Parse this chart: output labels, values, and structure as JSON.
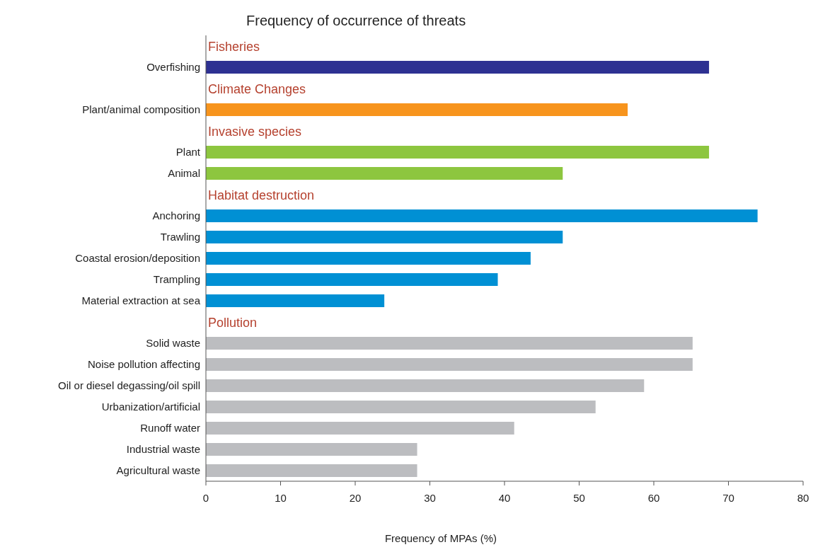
{
  "chart_data": {
    "type": "bar",
    "orientation": "horizontal",
    "title": "Frequency of occurrence of threats",
    "xlabel": "Frequency of MPAs (%)",
    "categories": [
      null,
      "Overfishing",
      null,
      "Plant/animal composition",
      null,
      "Plant",
      "Animal",
      null,
      "Anchoring",
      "Trawling",
      "Coastal erosion/deposition",
      "Trampling",
      "Material extraction at sea",
      null,
      "Solid waste",
      "Noise pollution affecting",
      "Oil or diesel degassing/oil spill",
      "Urbanization/artificial",
      "Runoff water",
      "Industrial waste",
      "Agricultural waste"
    ],
    "values": [
      null,
      67.4,
      null,
      56.5,
      null,
      67.4,
      47.8,
      null,
      73.9,
      47.8,
      43.5,
      39.1,
      23.9,
      null,
      65.2,
      65.2,
      58.7,
      52.2,
      41.3,
      28.3,
      28.3
    ],
    "colors": [
      "#ffffff",
      "#2e3192",
      "#ffffff",
      "#f7941d",
      "#ffffff",
      "#8dc63f",
      "#8dc63f",
      "#ffffff",
      "#0090d4",
      "#0090d4",
      "#0090d4",
      "#0090d4",
      "#0090d4",
      "#ffffff",
      "#bcbdc0",
      "#bcbdc0",
      "#bcbdc0",
      "#bcbdc0",
      "#bcbdc0",
      "#bcbdc0",
      "#bcbdc0"
    ],
    "xlim": [
      0,
      80
    ],
    "xticks": [
      0,
      10,
      20,
      30,
      40,
      50,
      60,
      70,
      80
    ],
    "annotations": [
      "Fisheries",
      "Climate Changes",
      "Invasive species",
      "Habitat destruction",
      "Pollution"
    ]
  }
}
